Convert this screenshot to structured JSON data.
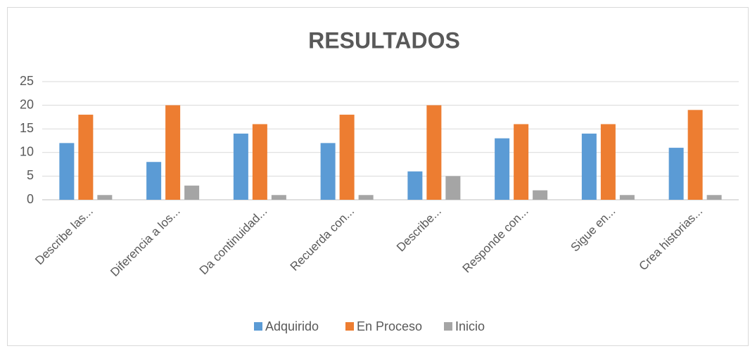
{
  "chart_data": {
    "type": "bar",
    "title": "RESULTADOS",
    "categories": [
      "Describe las...",
      "Diferencia a los...",
      "Da continuidad...",
      "Recuerda con...",
      "Describe...",
      "Responde con...",
      "Sigue en...",
      "Crea historias..."
    ],
    "series": [
      {
        "name": "Adquirido",
        "color": "#5b9bd5",
        "values": [
          12,
          8,
          14,
          12,
          6,
          13,
          14,
          11
        ]
      },
      {
        "name": "En Proceso",
        "color": "#ed7d31",
        "values": [
          18,
          20,
          16,
          18,
          20,
          16,
          16,
          19
        ]
      },
      {
        "name": "Inicio",
        "color": "#a5a5a5",
        "values": [
          1,
          3,
          1,
          1,
          5,
          2,
          1,
          1
        ]
      }
    ],
    "ylim": [
      0,
      25
    ],
    "yticks": [
      0,
      5,
      10,
      15,
      20,
      25
    ],
    "grid": true,
    "legend": "bottom"
  }
}
